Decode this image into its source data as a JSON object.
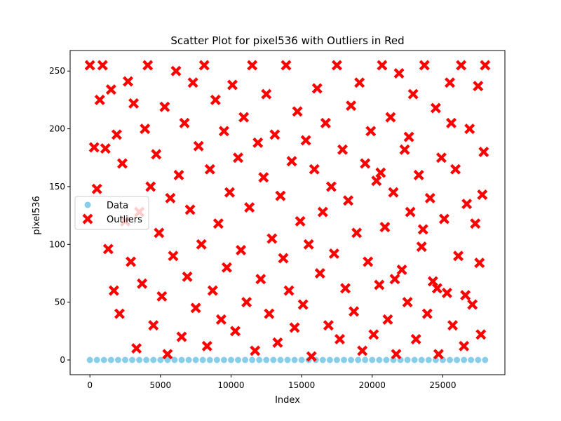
{
  "chart_data": {
    "type": "scatter",
    "title": "Scatter Plot for pixel536 with Outliers in Red",
    "xlabel": "Index",
    "ylabel": "pixel536",
    "xlim": [
      -1400,
      29400
    ],
    "ylim": [
      -12.75,
      267.75
    ],
    "x_ticks": [
      0,
      5000,
      10000,
      15000,
      20000,
      25000
    ],
    "x_tick_labels": [
      "0",
      "5000",
      "10000",
      "15000",
      "20000",
      "25000"
    ],
    "y_ticks": [
      0,
      50,
      100,
      150,
      200,
      250
    ],
    "y_tick_labels": [
      "0",
      "50",
      "100",
      "150",
      "200",
      "250"
    ],
    "legend": {
      "position": "center-left",
      "entries": [
        "Data",
        "Outliers"
      ]
    },
    "series": [
      {
        "name": "Data",
        "marker": "circle",
        "color": "#87ceeb",
        "points": [
          [
            0,
            0
          ],
          [
            500,
            0
          ],
          [
            1000,
            0
          ],
          [
            1500,
            0
          ],
          [
            2000,
            0
          ],
          [
            2500,
            0
          ],
          [
            3000,
            0
          ],
          [
            3500,
            0
          ],
          [
            4000,
            0
          ],
          [
            4500,
            0
          ],
          [
            5000,
            0
          ],
          [
            5500,
            0
          ],
          [
            6000,
            0
          ],
          [
            6500,
            0
          ],
          [
            7000,
            0
          ],
          [
            7500,
            0
          ],
          [
            8000,
            0
          ],
          [
            8500,
            0
          ],
          [
            9000,
            0
          ],
          [
            9500,
            0
          ],
          [
            10000,
            0
          ],
          [
            10500,
            0
          ],
          [
            11000,
            0
          ],
          [
            11500,
            0
          ],
          [
            12000,
            0
          ],
          [
            12500,
            0
          ],
          [
            13000,
            0
          ],
          [
            13500,
            0
          ],
          [
            14000,
            0
          ],
          [
            14500,
            0
          ],
          [
            15000,
            0
          ],
          [
            15500,
            0
          ],
          [
            16000,
            0
          ],
          [
            16500,
            0
          ],
          [
            17000,
            0
          ],
          [
            17500,
            0
          ],
          [
            18000,
            0
          ],
          [
            18500,
            0
          ],
          [
            19000,
            0
          ],
          [
            19500,
            0
          ],
          [
            20000,
            0
          ],
          [
            20500,
            0
          ],
          [
            21000,
            0
          ],
          [
            21500,
            0
          ],
          [
            22000,
            0
          ],
          [
            22500,
            0
          ],
          [
            23000,
            0
          ],
          [
            23500,
            0
          ],
          [
            24000,
            0
          ],
          [
            24500,
            0
          ],
          [
            25000,
            0
          ],
          [
            25500,
            0
          ],
          [
            26000,
            0
          ],
          [
            26500,
            0
          ],
          [
            27000,
            0
          ],
          [
            27500,
            0
          ],
          [
            28000,
            0
          ]
        ]
      },
      {
        "name": "Outliers",
        "marker": "x-filled",
        "color": "#ff0000",
        "points": [
          [
            0,
            255
          ],
          [
            300,
            184
          ],
          [
            500,
            148
          ],
          [
            700,
            225
          ],
          [
            900,
            255
          ],
          [
            1100,
            183
          ],
          [
            1300,
            96
          ],
          [
            1500,
            234
          ],
          [
            1700,
            60
          ],
          [
            1900,
            195
          ],
          [
            2100,
            40
          ],
          [
            2300,
            170
          ],
          [
            2500,
            120
          ],
          [
            2700,
            241
          ],
          [
            2900,
            85
          ],
          [
            3100,
            222
          ],
          [
            3300,
            10
          ],
          [
            3500,
            128
          ],
          [
            3700,
            66
          ],
          [
            3900,
            200
          ],
          [
            4100,
            255
          ],
          [
            4300,
            150
          ],
          [
            4500,
            30
          ],
          [
            4700,
            178
          ],
          [
            4900,
            110
          ],
          [
            5100,
            55
          ],
          [
            5300,
            219
          ],
          [
            5500,
            5
          ],
          [
            5700,
            140
          ],
          [
            5900,
            90
          ],
          [
            6100,
            250
          ],
          [
            6300,
            160
          ],
          [
            6500,
            20
          ],
          [
            6700,
            205
          ],
          [
            6900,
            72
          ],
          [
            7100,
            130
          ],
          [
            7300,
            240
          ],
          [
            7500,
            45
          ],
          [
            7700,
            185
          ],
          [
            7900,
            100
          ],
          [
            8100,
            255
          ],
          [
            8300,
            12
          ],
          [
            8500,
            165
          ],
          [
            8700,
            60
          ],
          [
            8900,
            225
          ],
          [
            9100,
            118
          ],
          [
            9300,
            35
          ],
          [
            9500,
            198
          ],
          [
            9700,
            80
          ],
          [
            9900,
            145
          ],
          [
            10100,
            238
          ],
          [
            10300,
            25
          ],
          [
            10500,
            175
          ],
          [
            10700,
            95
          ],
          [
            10900,
            210
          ],
          [
            11100,
            50
          ],
          [
            11300,
            132
          ],
          [
            11500,
            255
          ],
          [
            11700,
            8
          ],
          [
            11900,
            188
          ],
          [
            12100,
            70
          ],
          [
            12300,
            158
          ],
          [
            12500,
            230
          ],
          [
            12700,
            40
          ],
          [
            12900,
            105
          ],
          [
            13100,
            195
          ],
          [
            13300,
            15
          ],
          [
            13500,
            142
          ],
          [
            13700,
            88
          ],
          [
            13900,
            255
          ],
          [
            14100,
            60
          ],
          [
            14300,
            172
          ],
          [
            14500,
            28
          ],
          [
            14700,
            215
          ],
          [
            14900,
            120
          ],
          [
            15100,
            48
          ],
          [
            15300,
            190
          ],
          [
            15500,
            100
          ],
          [
            15700,
            3
          ],
          [
            15900,
            165
          ],
          [
            16100,
            235
          ],
          [
            16300,
            75
          ],
          [
            16500,
            128
          ],
          [
            16700,
            205
          ],
          [
            16900,
            30
          ],
          [
            17100,
            150
          ],
          [
            17300,
            92
          ],
          [
            17500,
            255
          ],
          [
            17700,
            18
          ],
          [
            17900,
            182
          ],
          [
            18100,
            62
          ],
          [
            18300,
            138
          ],
          [
            18500,
            220
          ],
          [
            18700,
            42
          ],
          [
            18900,
            110
          ],
          [
            19100,
            240
          ],
          [
            19300,
            8
          ],
          [
            19500,
            170
          ],
          [
            19700,
            85
          ],
          [
            19900,
            198
          ],
          [
            20100,
            22
          ],
          [
            20300,
            155
          ],
          [
            20500,
            65
          ],
          [
            20700,
            255
          ],
          [
            20900,
            115
          ],
          [
            21100,
            35
          ],
          [
            21300,
            210
          ],
          [
            21500,
            145
          ],
          [
            21700,
            5
          ],
          [
            21900,
            248
          ],
          [
            22100,
            78
          ],
          [
            22300,
            182
          ],
          [
            22500,
            50
          ],
          [
            22700,
            128
          ],
          [
            22900,
            230
          ],
          [
            23100,
            18
          ],
          [
            23300,
            160
          ],
          [
            23500,
            98
          ],
          [
            23700,
            255
          ],
          [
            23900,
            40
          ],
          [
            24100,
            140
          ],
          [
            24300,
            68
          ],
          [
            24500,
            218
          ],
          [
            24700,
            5
          ],
          [
            24900,
            175
          ],
          [
            25100,
            122
          ],
          [
            25300,
            58
          ],
          [
            25500,
            240
          ],
          [
            25700,
            30
          ],
          [
            25900,
            165
          ],
          [
            26100,
            90
          ],
          [
            26300,
            255
          ],
          [
            26500,
            12
          ],
          [
            26700,
            135
          ],
          [
            26900,
            200
          ],
          [
            27100,
            48
          ],
          [
            27300,
            118
          ],
          [
            27500,
            237
          ],
          [
            27700,
            22
          ],
          [
            27900,
            180
          ],
          [
            28000,
            255
          ],
          [
            27800,
            143
          ],
          [
            27600,
            84
          ],
          [
            26600,
            56
          ],
          [
            25600,
            205
          ],
          [
            24600,
            62
          ],
          [
            23600,
            113
          ],
          [
            22600,
            193
          ],
          [
            21600,
            70
          ],
          [
            20600,
            162
          ]
        ]
      }
    ]
  }
}
